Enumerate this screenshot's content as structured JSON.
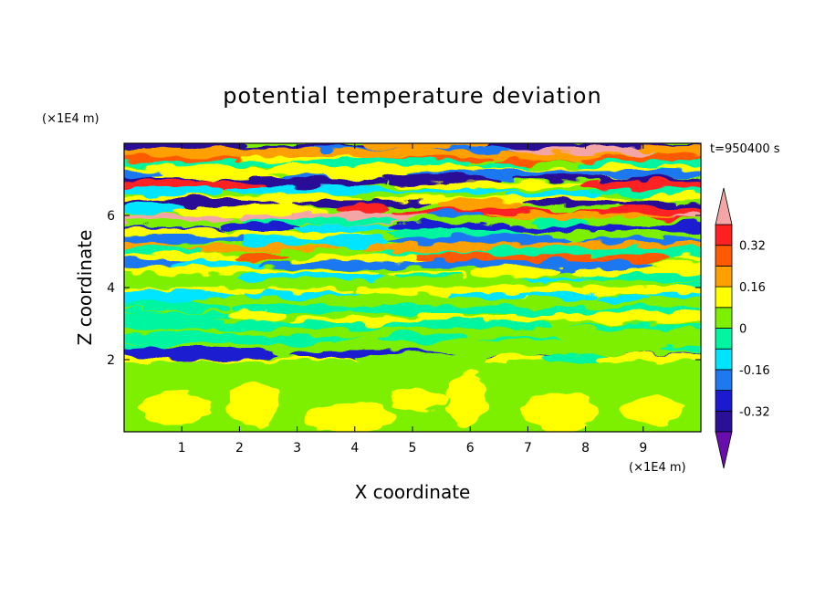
{
  "chart_data": {
    "type": "heatmap",
    "title": "potential temperature deviation",
    "xlabel": "X coordinate",
    "ylabel": "Z coordinate",
    "x_unit": "(×1E4 m)",
    "y_unit": "(×1E4 m)",
    "time_label": "t=950400 s",
    "xlim": [
      0,
      10
    ],
    "ylim": [
      0,
      8
    ],
    "x_ticks": [
      "1",
      "2",
      "3",
      "4",
      "5",
      "6",
      "7",
      "8",
      "9"
    ],
    "x_tick_values": [
      1,
      2,
      3,
      4,
      5,
      6,
      7,
      8,
      9
    ],
    "y_ticks": [
      "2",
      "4",
      "6"
    ],
    "y_tick_values": [
      2,
      4,
      6
    ],
    "colorbar": {
      "levels": [
        -0.4,
        -0.32,
        -0.24,
        -0.16,
        -0.08,
        0,
        0.08,
        0.16,
        0.24,
        0.32,
        0.4
      ],
      "labels": [
        "0.32",
        "0.16",
        "0",
        "-0.16",
        "-0.32"
      ],
      "label_values": [
        0.32,
        0.16,
        0,
        -0.16,
        -0.32
      ],
      "colors": [
        "#6a0dad",
        "#2a1096",
        "#1a1ad0",
        "#1e78f0",
        "#00e5ff",
        "#00f5a0",
        "#7df000",
        "#ffff00",
        "#ffa000",
        "#ff5a00",
        "#ff2020",
        "#f4a6a6"
      ],
      "over_color": "#f4a6a6",
      "under_color": "#6a0dad"
    },
    "bands": [
      {
        "z": 7.92,
        "val": -0.36
      },
      {
        "z": 7.78,
        "val": 0.4
      },
      {
        "z": 7.65,
        "val": 0.2
      },
      {
        "z": 7.52,
        "val": 0.28
      },
      {
        "z": 7.4,
        "val": -0.08
      },
      {
        "z": 7.25,
        "val": 0.12
      },
      {
        "z": 7.1,
        "val": -0.2
      },
      {
        "z": 6.95,
        "val": -0.34
      },
      {
        "z": 6.8,
        "val": 0.32
      },
      {
        "z": 6.62,
        "val": -0.1
      },
      {
        "z": 6.45,
        "val": 0.1
      },
      {
        "z": 6.3,
        "val": -0.34
      },
      {
        "z": 6.12,
        "val": 0.32
      },
      {
        "z": 5.95,
        "val": 0.4
      },
      {
        "z": 5.8,
        "val": 0.04
      },
      {
        "z": 5.62,
        "val": -0.3
      },
      {
        "z": 5.48,
        "val": 0.12
      },
      {
        "z": 5.3,
        "val": -0.2
      },
      {
        "z": 5.12,
        "val": 0.2
      },
      {
        "z": 4.95,
        "val": -0.06
      },
      {
        "z": 4.78,
        "val": 0.28
      },
      {
        "z": 4.6,
        "val": -0.24
      },
      {
        "z": 4.42,
        "val": 0.1
      },
      {
        "z": 4.25,
        "val": -0.1
      },
      {
        "z": 4.08,
        "val": 0.04
      },
      {
        "z": 3.9,
        "val": 0.14
      },
      {
        "z": 3.72,
        "val": -0.12
      },
      {
        "z": 3.55,
        "val": 0.06
      },
      {
        "z": 3.35,
        "val": -0.04
      },
      {
        "z": 3.15,
        "val": 0.08
      },
      {
        "z": 2.95,
        "val": -0.08
      },
      {
        "z": 2.75,
        "val": 0.04
      },
      {
        "z": 2.55,
        "val": -0.02
      },
      {
        "z": 2.35,
        "val": 0.06
      },
      {
        "z": 2.1,
        "val": -0.32
      },
      {
        "z": 1.95,
        "val": 0.12
      }
    ],
    "lower_layer": {
      "z_top": 1.95,
      "background_val": 0.04,
      "patch_val": 0.08
    }
  }
}
